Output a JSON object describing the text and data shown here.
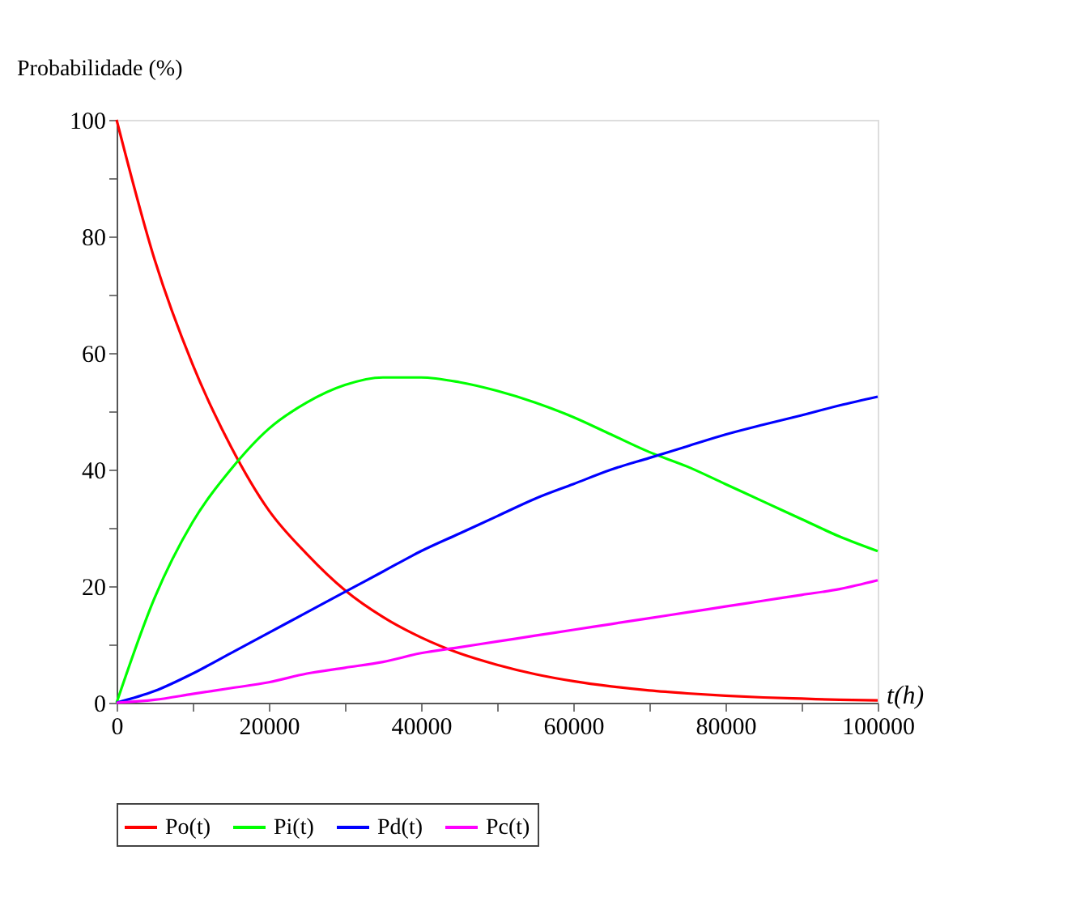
{
  "chart_data": {
    "type": "line",
    "xlabel": "t(h)",
    "ylabel": "Probabilidade (%)",
    "x": [
      0,
      5000,
      10000,
      15000,
      20000,
      25000,
      30000,
      35000,
      40000,
      45000,
      50000,
      55000,
      60000,
      65000,
      70000,
      75000,
      80000,
      85000,
      90000,
      95000,
      100000
    ],
    "series": [
      {
        "name": "Po(t)",
        "color": "#ff0000",
        "values": [
          100,
          76,
          58,
          44,
          33,
          25.5,
          19.3,
          14.7,
          11.2,
          8.5,
          6.5,
          4.9,
          3.7,
          2.8,
          2.1,
          1.6,
          1.2,
          0.9,
          0.7,
          0.5,
          0.4
        ]
      },
      {
        "name": "Pi(t)",
        "color": "#00ff00",
        "values": [
          0,
          18,
          31,
          40,
          47,
          51.5,
          54.5,
          55.8,
          55.8,
          55,
          53.5,
          51.5,
          49,
          46,
          43,
          40.5,
          37.5,
          34.5,
          31.5,
          28.5,
          26
        ]
      },
      {
        "name": "Pd(t)",
        "color": "#0000ff",
        "values": [
          0,
          2,
          5,
          8.5,
          12,
          15.5,
          19,
          22.5,
          26,
          29,
          32,
          35,
          37.5,
          40,
          42,
          44,
          46,
          47.7,
          49.3,
          51,
          52.5
        ]
      },
      {
        "name": "Pc(t)",
        "color": "#ff00ff",
        "values": [
          0,
          0.5,
          1.5,
          2.5,
          3.5,
          5,
          6,
          7,
          8.5,
          9.5,
          10.5,
          11.5,
          12.5,
          13.5,
          14.5,
          15.5,
          16.5,
          17.5,
          18.5,
          19.5,
          21
        ]
      }
    ],
    "xlim": [
      0,
      100000
    ],
    "xticks": [
      0,
      {
        "value": 10000,
        "label": null
      },
      20000,
      {
        "value": 30000,
        "label": null
      },
      40000,
      {
        "value": 50000,
        "label": null
      },
      60000,
      {
        "value": 70000,
        "label": null
      },
      80000,
      {
        "value": 90000,
        "label": null
      },
      100000
    ],
    "ylim": [
      0,
      100
    ],
    "yticks": [
      0,
      {
        "value": 10,
        "label": null
      },
      20,
      {
        "value": 30,
        "label": null
      },
      40,
      {
        "value": 50,
        "label": null
      },
      60,
      {
        "value": 70,
        "label": null
      },
      80,
      {
        "value": 90,
        "label": null
      },
      100
    ],
    "grid": false,
    "legend": "bottom",
    "marker": "none",
    "line_style": "solid"
  }
}
